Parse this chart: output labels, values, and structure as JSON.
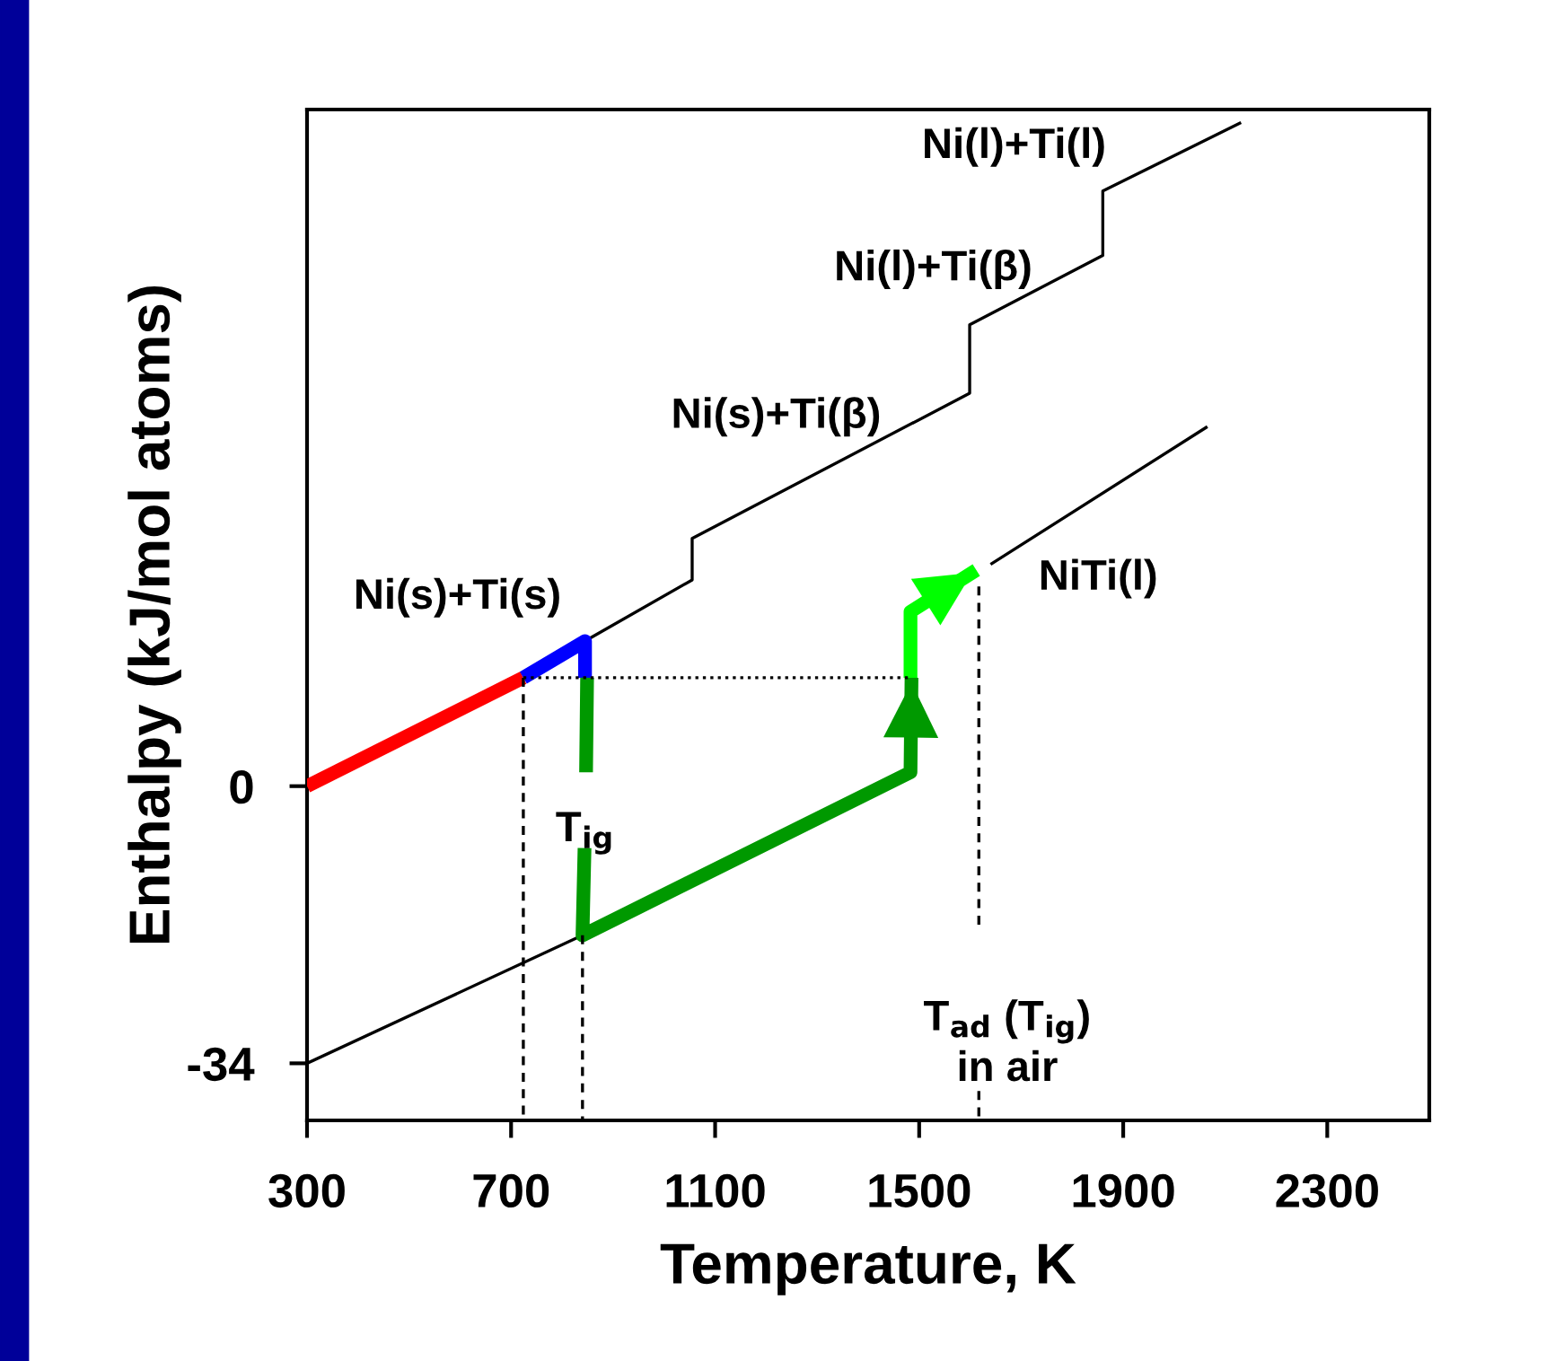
{
  "chart_data": {
    "type": "line",
    "xlabel": "Temperature, K",
    "ylabel": "Enthalpy (kJ/mol atoms)",
    "xlim": [
      300,
      2500
    ],
    "ylim": [
      -41,
      83
    ],
    "xticks": [
      300,
      700,
      1100,
      1500,
      1900,
      2300
    ],
    "yticks": [
      0,
      -34
    ],
    "grid": false,
    "legend": false,
    "series": [
      {
        "color": "#000000",
        "x": [
          845,
          1055,
          1055,
          1599,
          1599,
          1860,
          1860,
          2131
        ],
        "values": [
          17.8,
          25.3,
          30.4,
          48.2,
          56.6,
          65.1,
          73.0,
          81.4
        ]
      },
      {
        "color": "#000000",
        "x": [
          300,
          840,
          1200,
          1640,
          2065
        ],
        "values": [
          -34,
          -18.3,
          null,
          27.2,
          44.1
        ]
      },
      {
        "color": "#000000",
        "line_style": "dotted",
        "x": [
          724,
          1483
        ],
        "values": [
          13.3,
          13.3
        ]
      },
      {
        "color": "#000000",
        "line_style": "dashed",
        "x": [
          724,
          724
        ],
        "values": [
          13.3,
          -41
        ]
      },
      {
        "color": "#000000",
        "line_style": "dashed",
        "x": [
          840,
          840
        ],
        "values": [
          -18.3,
          -41
        ]
      },
      {
        "color": "#000000",
        "line_style": "dashed",
        "x": [
          1617,
          1617
        ],
        "values": [
          24.5,
          -17.2
        ]
      },
      {
        "color": "#000000",
        "line_style": "dashed",
        "x": [
          1617,
          1617
        ],
        "values": [
          -37.4,
          -41
        ]
      },
      {
        "color": "#ff0000",
        "x": [
          300,
          724
        ],
        "values": [
          0,
          13.3
        ]
      },
      {
        "color": "#0000ff",
        "x": [
          724,
          845,
          845
        ],
        "values": [
          13.3,
          17.8,
          13.3
        ]
      },
      {
        "color": "#009900",
        "x": [
          849,
          847,
          846,
          844,
          840,
          1483,
          1485
        ],
        "values": [
          13.3,
          1.7,
          null,
          -7.6,
          -18.3,
          1.7,
          13.3
        ]
      },
      {
        "color": "#00ff00",
        "x": [
          1483,
          1483,
          1612
        ],
        "values": [
          13.3,
          21.4,
          26.5
        ]
      }
    ],
    "annotations": [
      "Ni(s)+Ti(s)",
      "Ni(s)+Ti(β)",
      "Ni(l)+Ti(β)",
      "Ni(l)+Ti(l)",
      "NiTi(l)",
      {
        "text": "T$_{ig}$",
        "x": 845,
        "y": -5.8
      },
      "T$_{ad}$ (T$_{ig}$)\nin air"
    ]
  }
}
